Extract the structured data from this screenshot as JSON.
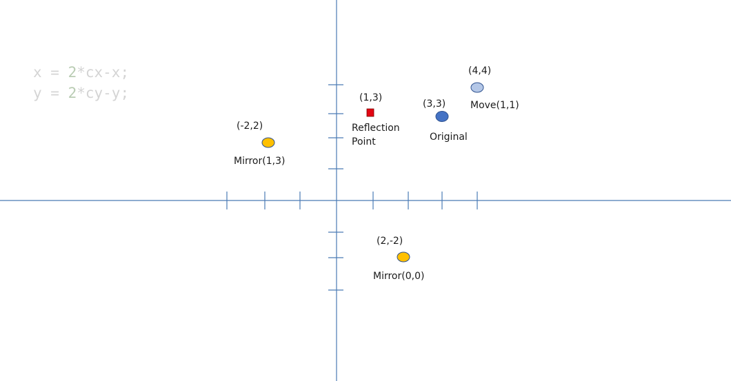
{
  "code": {
    "line1": {
      "lhs": "x = ",
      "num": "2",
      "rhs": "*cx-x;"
    },
    "line2": {
      "lhs": "y = ",
      "num": "2",
      "rhs": "*cy-y;"
    }
  },
  "colors": {
    "axis": "#4a7ab5",
    "reflection_point": "#e30613",
    "original": "#4472c4",
    "moved": "#b4c7e7",
    "mirror": "#ffc000",
    "marker_stroke": "#2f528f"
  },
  "points": {
    "reflection": {
      "coord_label": "(1,3)",
      "name_line1": "Reflection",
      "name_line2": "Point"
    },
    "original": {
      "coord_label": "(3,3)",
      "name": "Original"
    },
    "moved": {
      "coord_label": "(4,4)",
      "name": "Move(1,1)"
    },
    "mirror_1_3": {
      "coord_label": "(-2,2)",
      "name": "Mirror(1,3)"
    },
    "mirror_0_0": {
      "coord_label": "(2,-2)",
      "name": "Mirror(0,0)"
    }
  }
}
